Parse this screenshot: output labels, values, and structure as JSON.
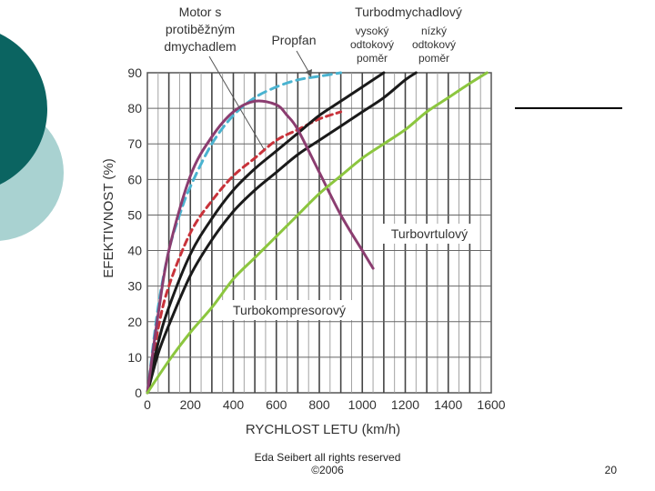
{
  "slide": {
    "footer_line1": "Eda Seibert all rights reserved",
    "footer_line2": "©2006",
    "page_number": "20",
    "accent_dark": "#0b6461",
    "accent_light": "#a9d2d1"
  },
  "chart_data": {
    "type": "line",
    "xlabel": "RYCHLOST LETU (km/h)",
    "ylabel": "EFEKTIVNOST (%)",
    "xlim": [
      0,
      1600
    ],
    "ylim": [
      0,
      90
    ],
    "x_ticks": [
      0,
      200,
      400,
      600,
      800,
      1000,
      1200,
      1400,
      1600
    ],
    "y_ticks": [
      0,
      10,
      20,
      30,
      40,
      50,
      60,
      70,
      80,
      90
    ],
    "grid": true,
    "series": [
      {
        "name": "Propfan",
        "color": "#4ab3d0",
        "dash": "9,6",
        "x": [
          0,
          50,
          100,
          150,
          200,
          300,
          400,
          500,
          600,
          700,
          800,
          900
        ],
        "y": [
          0,
          24,
          40,
          50,
          58,
          70,
          78,
          83,
          86,
          88,
          89,
          90
        ]
      },
      {
        "name": "Motor s protiběžným dmychadlem",
        "color": "#c8323a",
        "dash": "7,5",
        "x": [
          0,
          50,
          100,
          200,
          300,
          400,
          500,
          600,
          700,
          800,
          900
        ],
        "y": [
          0,
          18,
          30,
          45,
          54,
          61,
          66,
          71,
          74,
          77,
          79
        ]
      },
      {
        "name": "Turbodmychadlový vysoký odtokový poměr",
        "color": "#1a1a1a",
        "dash": "",
        "x": [
          0,
          50,
          100,
          200,
          300,
          400,
          500,
          600,
          700,
          800,
          900,
          1000,
          1100
        ],
        "y": [
          0,
          14,
          24,
          39,
          49,
          57,
          63,
          68,
          73,
          78,
          82,
          86,
          91
        ]
      },
      {
        "name": "Turbodmychadlový nízký odtokový poměr",
        "color": "#1a1a1a",
        "dash": "",
        "x": [
          0,
          50,
          100,
          200,
          300,
          400,
          500,
          600,
          700,
          800,
          900,
          1000,
          1100,
          1200,
          1250
        ],
        "y": [
          0,
          11,
          19,
          33,
          43,
          51,
          57,
          62,
          67,
          71,
          75,
          79,
          83,
          88,
          91
        ]
      },
      {
        "name": "Turbovrtulový",
        "color": "#8b3d70",
        "dash": "",
        "x": [
          0,
          50,
          100,
          200,
          300,
          400,
          500,
          600,
          650,
          700,
          800,
          900,
          1000,
          1050
        ],
        "y": [
          0,
          22,
          40,
          61,
          72,
          79,
          82,
          81,
          78,
          74,
          62,
          50,
          40,
          35
        ]
      },
      {
        "name": "Turbokompresorový",
        "color": "#8cc63f",
        "dash": "",
        "x": [
          0,
          100,
          200,
          300,
          400,
          500,
          600,
          700,
          800,
          900,
          1000,
          1100,
          1200,
          1300,
          1400,
          1500,
          1580
        ],
        "y": [
          0,
          9,
          17,
          24,
          32,
          38,
          44,
          50,
          56,
          61,
          66,
          70,
          74,
          79,
          83,
          87,
          90
        ]
      }
    ],
    "annotations": {
      "motor_line1": "Motor s",
      "motor_line2": "protiběžným",
      "motor_line3": "dmychadlem",
      "propfan": "Propfan",
      "turbofan": "Turbodmychadlový",
      "high_line1": "vysoký",
      "high_line2": "odtokový",
      "high_line3": "poměr",
      "low_line1": "nízký",
      "low_line2": "odtokový",
      "low_line3": "poměr",
      "turboprop": "Turbovrtulový",
      "turbojet": "Turbokompresorový"
    }
  }
}
